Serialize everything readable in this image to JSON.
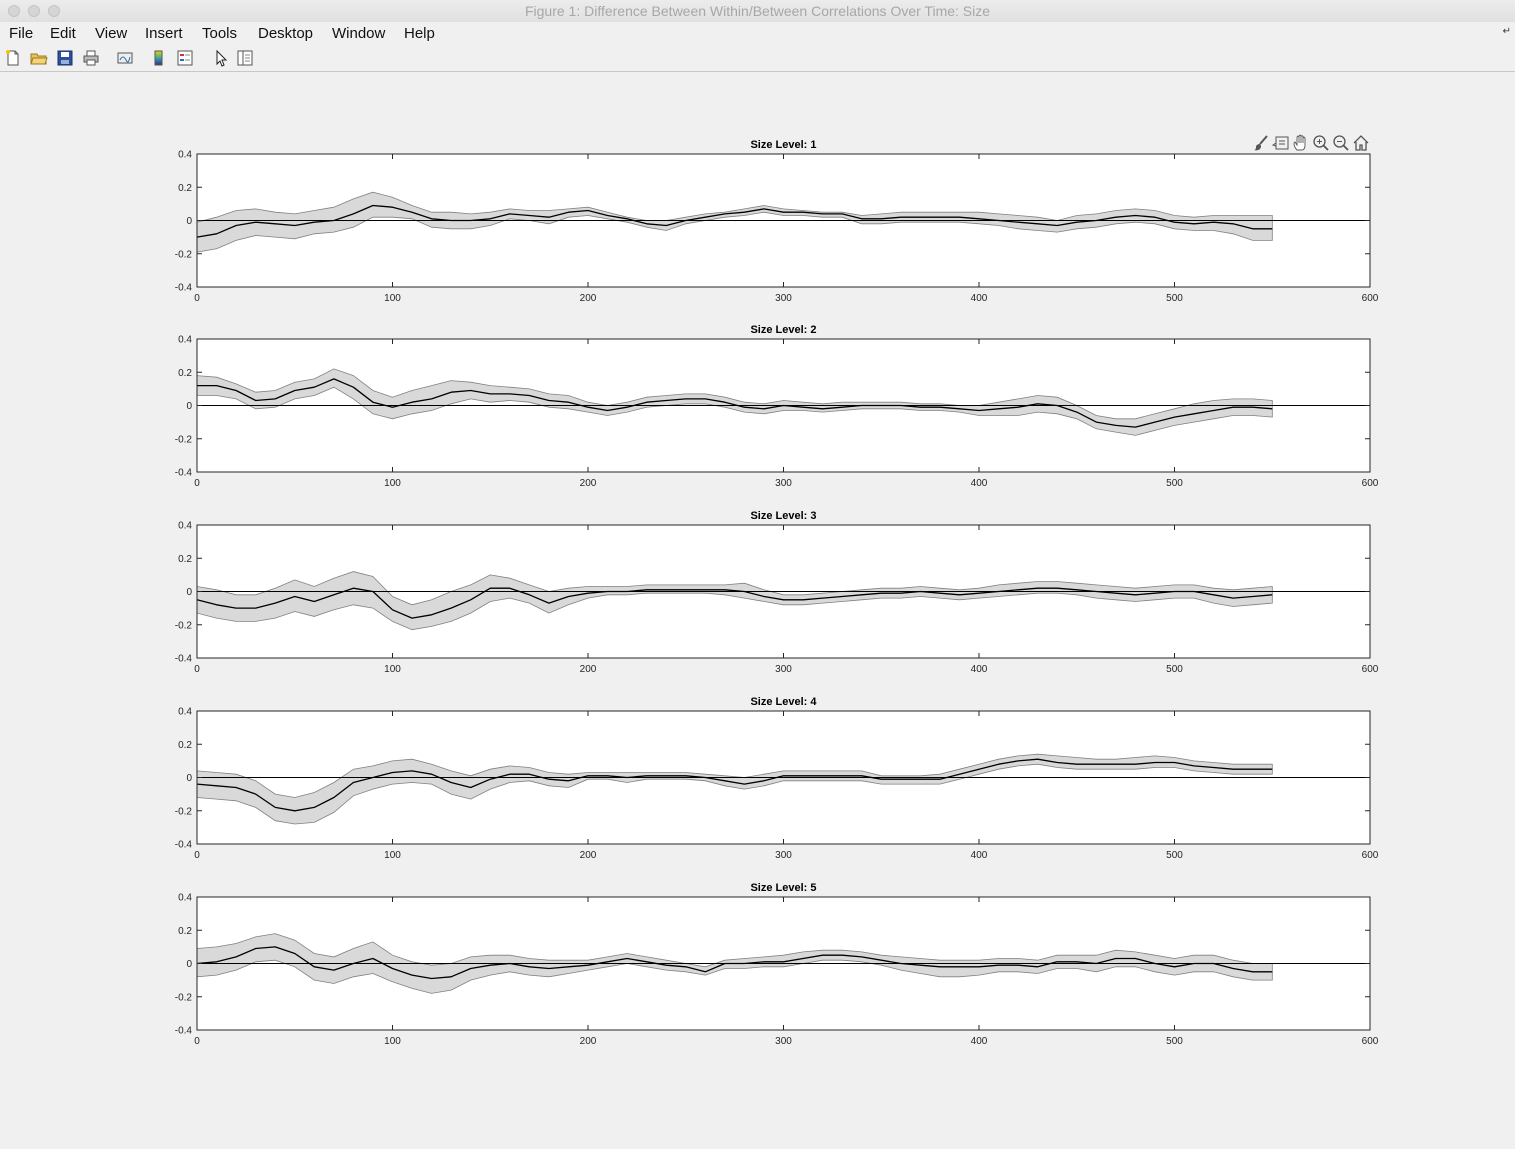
{
  "window": {
    "title": "Figure 1: Difference Between Within/Between Correlations Over Time: Size"
  },
  "menubar": {
    "items": [
      "File",
      "Edit",
      "View",
      "Insert",
      "Tools",
      "Desktop",
      "Window",
      "Help"
    ],
    "corner_icon": "dock-arrow-icon"
  },
  "toolbar": {
    "icons": [
      "new-figure-icon",
      "open-file-icon",
      "save-icon",
      "print-icon",
      "link-plot-icon",
      "insert-colorbar-icon",
      "insert-legend-icon",
      "edit-plot-pointer-icon",
      "property-inspector-icon"
    ]
  },
  "axes_toolbar": {
    "icons": [
      "brush-icon",
      "data-tips-icon",
      "pan-hand-icon",
      "zoom-in-icon",
      "zoom-out-icon",
      "home-icon"
    ]
  },
  "colors": {
    "band": "#d9d9d9",
    "band_edge": "#808080",
    "line": "#000000",
    "zero_line": "#000000"
  },
  "chart_data": [
    {
      "type": "line",
      "title": "Size Level: 1",
      "xlim": [
        0,
        600
      ],
      "ylim": [
        -0.4,
        0.4
      ],
      "xticks": [
        "0",
        "100",
        "200",
        "300",
        "400",
        "500",
        "600"
      ],
      "yticks": [
        "0.4",
        "0.2",
        "0",
        "-0.2",
        "-0.4"
      ],
      "x": [
        0,
        10,
        20,
        30,
        40,
        50,
        60,
        70,
        80,
        90,
        100,
        110,
        120,
        130,
        140,
        150,
        160,
        170,
        180,
        190,
        200,
        210,
        220,
        230,
        240,
        250,
        260,
        270,
        280,
        290,
        300,
        310,
        320,
        330,
        340,
        350,
        360,
        370,
        380,
        390,
        400,
        410,
        420,
        430,
        440,
        450,
        460,
        470,
        480,
        490,
        500,
        510,
        520,
        530,
        540,
        550
      ],
      "mean": [
        -0.1,
        -0.08,
        -0.03,
        -0.01,
        -0.02,
        -0.03,
        -0.01,
        0.0,
        0.04,
        0.09,
        0.08,
        0.05,
        0.01,
        0.0,
        0.0,
        0.01,
        0.04,
        0.03,
        0.02,
        0.05,
        0.06,
        0.03,
        0.01,
        -0.02,
        -0.03,
        0.0,
        0.02,
        0.04,
        0.05,
        0.07,
        0.05,
        0.05,
        0.04,
        0.04,
        0.01,
        0.01,
        0.02,
        0.02,
        0.02,
        0.02,
        0.01,
        0.0,
        -0.01,
        -0.02,
        -0.03,
        -0.01,
        0.0,
        0.02,
        0.03,
        0.02,
        -0.01,
        -0.02,
        -0.01,
        -0.02,
        -0.05,
        -0.05
      ],
      "upper": [
        -0.01,
        0.02,
        0.06,
        0.07,
        0.05,
        0.04,
        0.06,
        0.08,
        0.13,
        0.17,
        0.14,
        0.09,
        0.05,
        0.05,
        0.04,
        0.05,
        0.07,
        0.06,
        0.06,
        0.07,
        0.08,
        0.05,
        0.02,
        0.0,
        0.0,
        0.02,
        0.04,
        0.05,
        0.07,
        0.09,
        0.07,
        0.06,
        0.05,
        0.05,
        0.03,
        0.04,
        0.05,
        0.05,
        0.05,
        0.05,
        0.05,
        0.04,
        0.03,
        0.02,
        0.0,
        0.03,
        0.04,
        0.06,
        0.07,
        0.06,
        0.03,
        0.02,
        0.03,
        0.03,
        0.03,
        0.03
      ],
      "lower": [
        -0.19,
        -0.17,
        -0.12,
        -0.09,
        -0.1,
        -0.11,
        -0.08,
        -0.07,
        -0.04,
        0.02,
        0.02,
        0.01,
        -0.04,
        -0.05,
        -0.05,
        -0.03,
        0.01,
        0.0,
        -0.02,
        0.02,
        0.03,
        0.01,
        -0.01,
        -0.04,
        -0.06,
        -0.02,
        0.0,
        0.02,
        0.03,
        0.05,
        0.03,
        0.03,
        0.02,
        0.02,
        -0.02,
        -0.02,
        -0.01,
        -0.01,
        -0.01,
        -0.01,
        -0.02,
        -0.03,
        -0.05,
        -0.06,
        -0.07,
        -0.05,
        -0.04,
        -0.02,
        -0.01,
        -0.02,
        -0.05,
        -0.06,
        -0.06,
        -0.08,
        -0.12,
        -0.12
      ]
    },
    {
      "type": "line",
      "title": "Size Level: 2",
      "xlim": [
        0,
        600
      ],
      "ylim": [
        -0.4,
        0.4
      ],
      "xticks": [
        "0",
        "100",
        "200",
        "300",
        "400",
        "500",
        "600"
      ],
      "yticks": [
        "0.4",
        "0.2",
        "0",
        "-0.2",
        "-0.4"
      ],
      "x": [
        0,
        10,
        20,
        30,
        40,
        50,
        60,
        70,
        80,
        90,
        100,
        110,
        120,
        130,
        140,
        150,
        160,
        170,
        180,
        190,
        200,
        210,
        220,
        230,
        240,
        250,
        260,
        270,
        280,
        290,
        300,
        310,
        320,
        330,
        340,
        350,
        360,
        370,
        380,
        390,
        400,
        410,
        420,
        430,
        440,
        450,
        460,
        470,
        480,
        490,
        500,
        510,
        520,
        530,
        540,
        550
      ],
      "mean": [
        0.12,
        0.12,
        0.09,
        0.03,
        0.04,
        0.09,
        0.11,
        0.16,
        0.11,
        0.02,
        -0.01,
        0.02,
        0.04,
        0.08,
        0.09,
        0.07,
        0.07,
        0.06,
        0.03,
        0.02,
        -0.01,
        -0.03,
        -0.01,
        0.02,
        0.03,
        0.04,
        0.04,
        0.02,
        -0.01,
        -0.02,
        0.0,
        -0.01,
        -0.02,
        -0.01,
        0.0,
        0.0,
        0.0,
        -0.01,
        -0.01,
        -0.02,
        -0.03,
        -0.02,
        -0.01,
        0.01,
        0.0,
        -0.04,
        -0.1,
        -0.12,
        -0.13,
        -0.1,
        -0.07,
        -0.05,
        -0.03,
        -0.01,
        -0.01,
        -0.02
      ],
      "upper": [
        0.18,
        0.17,
        0.13,
        0.08,
        0.09,
        0.14,
        0.16,
        0.22,
        0.18,
        0.09,
        0.05,
        0.09,
        0.12,
        0.15,
        0.14,
        0.12,
        0.11,
        0.1,
        0.07,
        0.06,
        0.02,
        0.0,
        0.02,
        0.05,
        0.06,
        0.07,
        0.07,
        0.05,
        0.02,
        0.01,
        0.03,
        0.02,
        0.01,
        0.02,
        0.02,
        0.02,
        0.02,
        0.01,
        0.01,
        0.0,
        0.0,
        0.02,
        0.04,
        0.06,
        0.05,
        0.0,
        -0.06,
        -0.08,
        -0.08,
        -0.05,
        -0.02,
        0.01,
        0.03,
        0.04,
        0.04,
        0.03
      ],
      "lower": [
        0.06,
        0.06,
        0.04,
        -0.02,
        -0.01,
        0.04,
        0.06,
        0.11,
        0.04,
        -0.05,
        -0.08,
        -0.05,
        -0.03,
        0.01,
        0.04,
        0.02,
        0.03,
        0.02,
        -0.01,
        -0.02,
        -0.04,
        -0.06,
        -0.04,
        -0.01,
        0.0,
        0.01,
        0.01,
        -0.01,
        -0.04,
        -0.05,
        -0.03,
        -0.03,
        -0.04,
        -0.03,
        -0.02,
        -0.02,
        -0.02,
        -0.03,
        -0.03,
        -0.04,
        -0.06,
        -0.06,
        -0.06,
        -0.04,
        -0.05,
        -0.08,
        -0.14,
        -0.16,
        -0.18,
        -0.15,
        -0.12,
        -0.1,
        -0.08,
        -0.06,
        -0.06,
        -0.07
      ]
    },
    {
      "type": "line",
      "title": "Size Level: 3",
      "xlim": [
        0,
        600
      ],
      "ylim": [
        -0.4,
        0.4
      ],
      "xticks": [
        "0",
        "100",
        "200",
        "300",
        "400",
        "500",
        "600"
      ],
      "yticks": [
        "0.4",
        "0.2",
        "0",
        "-0.2",
        "-0.4"
      ],
      "x": [
        0,
        10,
        20,
        30,
        40,
        50,
        60,
        70,
        80,
        90,
        100,
        110,
        120,
        130,
        140,
        150,
        160,
        170,
        180,
        190,
        200,
        210,
        220,
        230,
        240,
        250,
        260,
        270,
        280,
        290,
        300,
        310,
        320,
        330,
        340,
        350,
        360,
        370,
        380,
        390,
        400,
        410,
        420,
        430,
        440,
        450,
        460,
        470,
        480,
        490,
        500,
        510,
        520,
        530,
        540,
        550
      ],
      "mean": [
        -0.05,
        -0.08,
        -0.1,
        -0.1,
        -0.07,
        -0.03,
        -0.06,
        -0.02,
        0.02,
        0.0,
        -0.11,
        -0.16,
        -0.14,
        -0.1,
        -0.05,
        0.02,
        0.02,
        -0.02,
        -0.07,
        -0.03,
        -0.01,
        0.0,
        0.0,
        0.01,
        0.01,
        0.01,
        0.01,
        0.01,
        0.0,
        -0.03,
        -0.05,
        -0.05,
        -0.04,
        -0.03,
        -0.02,
        -0.01,
        -0.01,
        0.0,
        -0.01,
        -0.02,
        -0.01,
        0.0,
        0.01,
        0.02,
        0.02,
        0.01,
        0.0,
        -0.01,
        -0.02,
        -0.01,
        0.0,
        0.0,
        -0.02,
        -0.04,
        -0.03,
        -0.02
      ],
      "upper": [
        0.03,
        0.01,
        -0.02,
        -0.02,
        0.02,
        0.07,
        0.03,
        0.08,
        0.12,
        0.09,
        -0.03,
        -0.08,
        -0.05,
        0.0,
        0.04,
        0.1,
        0.08,
        0.04,
        0.0,
        0.02,
        0.03,
        0.03,
        0.03,
        0.04,
        0.04,
        0.04,
        0.04,
        0.04,
        0.05,
        0.01,
        -0.02,
        -0.02,
        -0.01,
        0.0,
        0.01,
        0.02,
        0.02,
        0.03,
        0.02,
        0.01,
        0.02,
        0.04,
        0.05,
        0.06,
        0.06,
        0.05,
        0.04,
        0.03,
        0.02,
        0.03,
        0.04,
        0.04,
        0.02,
        0.01,
        0.02,
        0.03
      ],
      "lower": [
        -0.13,
        -0.16,
        -0.18,
        -0.18,
        -0.16,
        -0.12,
        -0.15,
        -0.11,
        -0.08,
        -0.1,
        -0.18,
        -0.23,
        -0.21,
        -0.18,
        -0.13,
        -0.06,
        -0.04,
        -0.07,
        -0.13,
        -0.08,
        -0.04,
        -0.02,
        -0.02,
        -0.01,
        -0.01,
        -0.01,
        -0.01,
        -0.02,
        -0.04,
        -0.06,
        -0.08,
        -0.08,
        -0.07,
        -0.06,
        -0.05,
        -0.04,
        -0.04,
        -0.03,
        -0.04,
        -0.05,
        -0.04,
        -0.03,
        -0.02,
        -0.01,
        -0.01,
        -0.02,
        -0.04,
        -0.05,
        -0.06,
        -0.05,
        -0.04,
        -0.04,
        -0.07,
        -0.09,
        -0.08,
        -0.07
      ]
    },
    {
      "type": "line",
      "title": "Size Level: 4",
      "xlim": [
        0,
        600
      ],
      "ylim": [
        -0.4,
        0.4
      ],
      "xticks": [
        "0",
        "100",
        "200",
        "300",
        "400",
        "500",
        "600"
      ],
      "yticks": [
        "0.4",
        "0.2",
        "0",
        "-0.2",
        "-0.4"
      ],
      "x": [
        0,
        10,
        20,
        30,
        40,
        50,
        60,
        70,
        80,
        90,
        100,
        110,
        120,
        130,
        140,
        150,
        160,
        170,
        180,
        190,
        200,
        210,
        220,
        230,
        240,
        250,
        260,
        270,
        280,
        290,
        300,
        310,
        320,
        330,
        340,
        350,
        360,
        370,
        380,
        390,
        400,
        410,
        420,
        430,
        440,
        450,
        460,
        470,
        480,
        490,
        500,
        510,
        520,
        530,
        540,
        550
      ],
      "mean": [
        -0.04,
        -0.05,
        -0.06,
        -0.1,
        -0.18,
        -0.2,
        -0.18,
        -0.12,
        -0.03,
        0.0,
        0.03,
        0.04,
        0.02,
        -0.03,
        -0.06,
        -0.01,
        0.02,
        0.02,
        -0.01,
        -0.02,
        0.01,
        0.01,
        0.0,
        0.01,
        0.01,
        0.01,
        0.0,
        -0.02,
        -0.04,
        -0.02,
        0.01,
        0.01,
        0.01,
        0.01,
        0.01,
        -0.01,
        -0.01,
        -0.01,
        -0.01,
        0.02,
        0.05,
        0.08,
        0.1,
        0.11,
        0.09,
        0.08,
        0.08,
        0.08,
        0.08,
        0.09,
        0.09,
        0.07,
        0.06,
        0.05,
        0.05,
        0.05
      ],
      "upper": [
        0.04,
        0.03,
        0.02,
        -0.02,
        -0.1,
        -0.12,
        -0.09,
        -0.03,
        0.05,
        0.07,
        0.1,
        0.11,
        0.08,
        0.04,
        0.01,
        0.05,
        0.07,
        0.06,
        0.03,
        0.02,
        0.03,
        0.03,
        0.03,
        0.03,
        0.03,
        0.03,
        0.02,
        0.01,
        0.0,
        0.02,
        0.04,
        0.04,
        0.04,
        0.04,
        0.04,
        0.01,
        0.01,
        0.01,
        0.02,
        0.05,
        0.08,
        0.11,
        0.13,
        0.14,
        0.13,
        0.12,
        0.11,
        0.11,
        0.12,
        0.13,
        0.12,
        0.1,
        0.09,
        0.08,
        0.08,
        0.08
      ],
      "lower": [
        -0.12,
        -0.13,
        -0.14,
        -0.18,
        -0.26,
        -0.28,
        -0.27,
        -0.21,
        -0.11,
        -0.07,
        -0.04,
        -0.03,
        -0.04,
        -0.1,
        -0.13,
        -0.07,
        -0.03,
        -0.02,
        -0.05,
        -0.06,
        -0.01,
        -0.01,
        -0.03,
        -0.01,
        -0.01,
        -0.01,
        -0.02,
        -0.05,
        -0.07,
        -0.05,
        -0.02,
        -0.02,
        -0.02,
        -0.02,
        -0.02,
        -0.04,
        -0.04,
        -0.04,
        -0.04,
        -0.01,
        0.02,
        0.05,
        0.07,
        0.08,
        0.06,
        0.05,
        0.05,
        0.05,
        0.05,
        0.06,
        0.06,
        0.04,
        0.03,
        0.02,
        0.02,
        0.02
      ]
    },
    {
      "type": "line",
      "title": "Size Level: 5",
      "xlim": [
        0,
        600
      ],
      "ylim": [
        -0.4,
        0.4
      ],
      "xticks": [
        "0",
        "100",
        "200",
        "300",
        "400",
        "500",
        "600"
      ],
      "yticks": [
        "0.4",
        "0.2",
        "0",
        "-0.2",
        "-0.4"
      ],
      "x": [
        0,
        10,
        20,
        30,
        40,
        50,
        60,
        70,
        80,
        90,
        100,
        110,
        120,
        130,
        140,
        150,
        160,
        170,
        180,
        190,
        200,
        210,
        220,
        230,
        240,
        250,
        260,
        270,
        280,
        290,
        300,
        310,
        320,
        330,
        340,
        350,
        360,
        370,
        380,
        390,
        400,
        410,
        420,
        430,
        440,
        450,
        460,
        470,
        480,
        490,
        500,
        510,
        520,
        530,
        540,
        550
      ],
      "mean": [
        0.0,
        0.01,
        0.04,
        0.09,
        0.1,
        0.06,
        -0.02,
        -0.04,
        0.0,
        0.03,
        -0.03,
        -0.07,
        -0.09,
        -0.08,
        -0.03,
        -0.01,
        0.0,
        -0.02,
        -0.03,
        -0.02,
        -0.01,
        0.01,
        0.03,
        0.01,
        -0.01,
        -0.02,
        -0.05,
        0.0,
        0.0,
        0.01,
        0.01,
        0.03,
        0.05,
        0.05,
        0.04,
        0.02,
        0.0,
        -0.01,
        -0.02,
        -0.02,
        -0.02,
        -0.01,
        -0.01,
        -0.02,
        0.01,
        0.01,
        0.0,
        0.03,
        0.03,
        0.0,
        -0.02,
        0.0,
        0.0,
        -0.03,
        -0.05,
        -0.05
      ],
      "upper": [
        0.09,
        0.1,
        0.12,
        0.16,
        0.18,
        0.14,
        0.06,
        0.04,
        0.09,
        0.13,
        0.05,
        0.01,
        -0.01,
        0.0,
        0.04,
        0.05,
        0.05,
        0.03,
        0.02,
        0.02,
        0.02,
        0.04,
        0.06,
        0.04,
        0.02,
        0.0,
        -0.02,
        0.02,
        0.03,
        0.04,
        0.05,
        0.07,
        0.08,
        0.08,
        0.07,
        0.05,
        0.04,
        0.03,
        0.02,
        0.02,
        0.02,
        0.03,
        0.03,
        0.02,
        0.05,
        0.05,
        0.05,
        0.08,
        0.07,
        0.05,
        0.03,
        0.05,
        0.05,
        0.02,
        0.0,
        0.0
      ],
      "lower": [
        -0.08,
        -0.07,
        -0.04,
        0.01,
        0.02,
        -0.02,
        -0.1,
        -0.12,
        -0.08,
        -0.06,
        -0.11,
        -0.15,
        -0.18,
        -0.16,
        -0.1,
        -0.07,
        -0.05,
        -0.07,
        -0.08,
        -0.06,
        -0.04,
        -0.02,
        0.0,
        -0.02,
        -0.04,
        -0.05,
        -0.07,
        -0.03,
        -0.03,
        -0.02,
        -0.02,
        0.0,
        0.02,
        0.02,
        0.01,
        -0.01,
        -0.04,
        -0.06,
        -0.08,
        -0.08,
        -0.07,
        -0.05,
        -0.05,
        -0.06,
        -0.03,
        -0.03,
        -0.05,
        -0.02,
        -0.02,
        -0.05,
        -0.07,
        -0.05,
        -0.05,
        -0.08,
        -0.1,
        -0.1
      ]
    }
  ]
}
